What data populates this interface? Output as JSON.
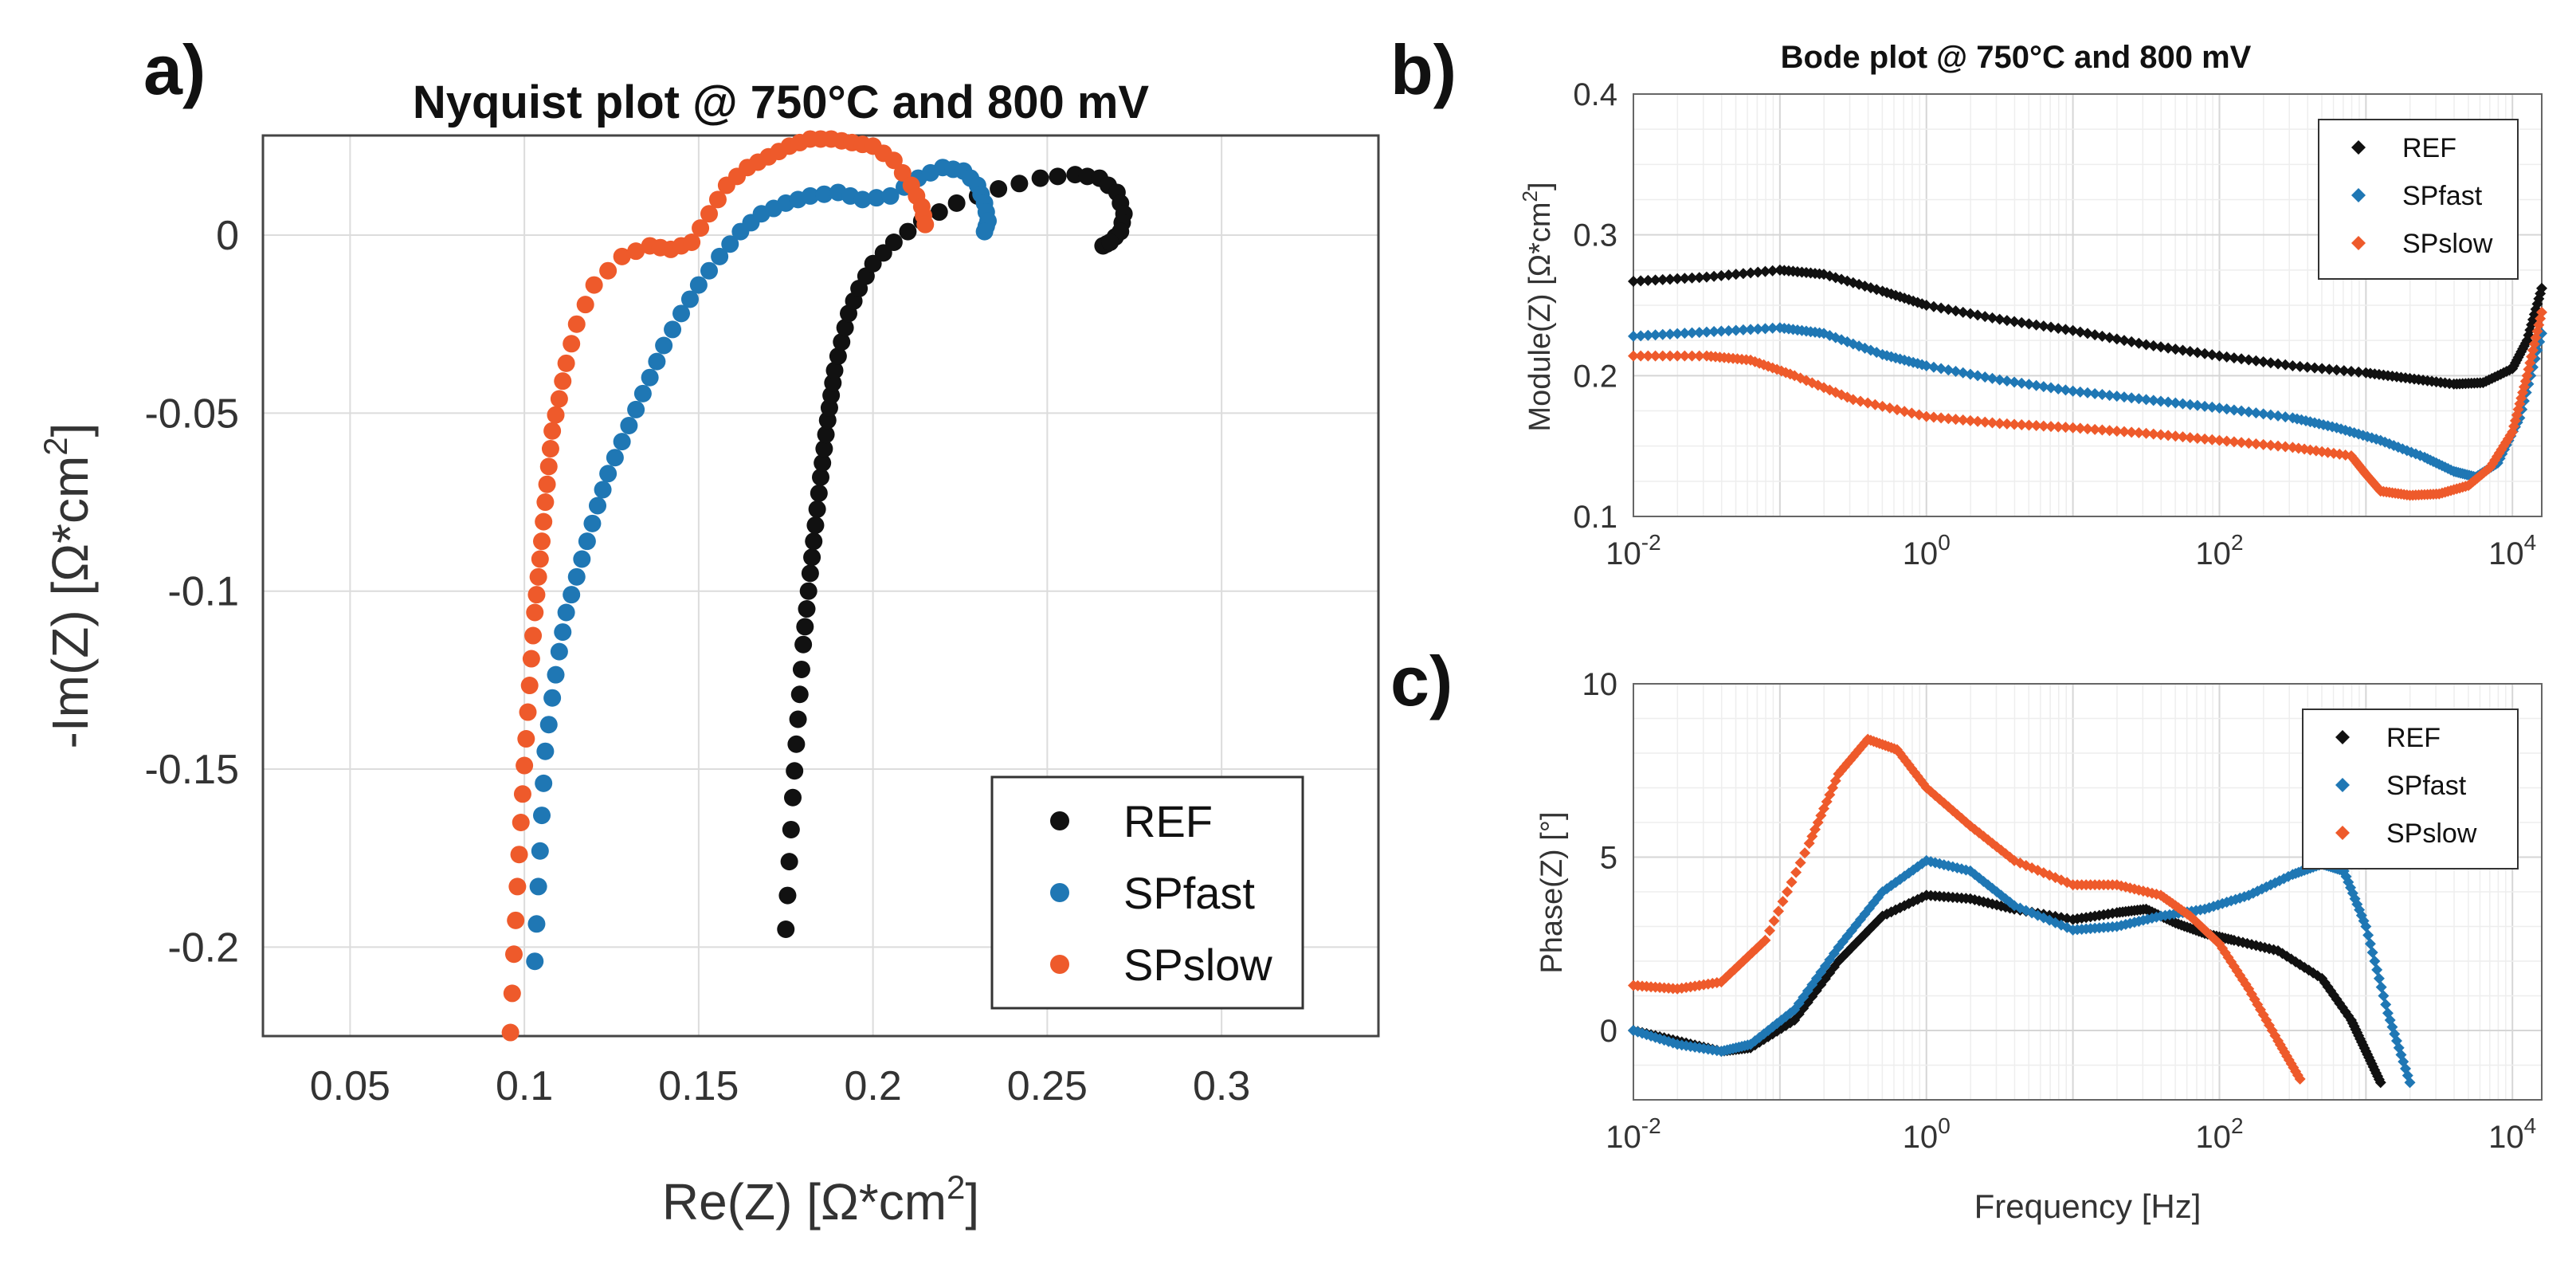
{
  "chart_data": [
    {
      "panel_label": "a)",
      "type": "scatter",
      "title": "Nyquist plot @ 750°C and 800 mV",
      "xlabel": "Re(Z) [Ω*cm",
      "xlabel_sup": "2",
      "xlabel_suffix": "]",
      "ylabel": "-Im(Z) [Ω*cm",
      "ylabel_sup": "2",
      "ylabel_suffix": "]",
      "xlim": [
        0.025,
        0.345
      ],
      "ylim": [
        -0.225,
        0.028
      ],
      "xticks": [
        "0.05",
        "0.1",
        "0.15",
        "0.2",
        "0.25",
        "0.3"
      ],
      "yticks": [
        "0",
        "-0.05",
        "-0.1",
        "-0.15",
        "-0.2"
      ],
      "grid": true,
      "legend": {
        "position": "bottom-right",
        "entries": [
          "REF",
          "SPfast",
          "SPslow"
        ]
      },
      "series": [
        {
          "name": "REF",
          "color": "#111111",
          "x": [
            0.175,
            0.176,
            0.177,
            0.178,
            0.179,
            0.18,
            0.181,
            0.182,
            0.183,
            0.184,
            0.185,
            0.186,
            0.187,
            0.188,
            0.189,
            0.191,
            0.193,
            0.196,
            0.2,
            0.206,
            0.214,
            0.224,
            0.236,
            0.248,
            0.258,
            0.265,
            0.27,
            0.272,
            0.271,
            0.268,
            0.266,
            0.268
          ],
          "y": [
            -0.195,
            -0.176,
            -0.158,
            -0.143,
            -0.129,
            -0.115,
            -0.105,
            -0.095,
            -0.086,
            -0.077,
            -0.068,
            -0.06,
            -0.052,
            -0.045,
            -0.038,
            -0.03,
            -0.022,
            -0.015,
            -0.008,
            -0.002,
            0.004,
            0.009,
            0.013,
            0.016,
            0.017,
            0.016,
            0.012,
            0.006,
            0.001,
            -0.002,
            -0.003,
            -0.002
          ]
        },
        {
          "name": "SPfast",
          "color": "#1f77b4",
          "x": [
            0.103,
            0.104,
            0.105,
            0.106,
            0.108,
            0.11,
            0.112,
            0.115,
            0.118,
            0.121,
            0.124,
            0.128,
            0.132,
            0.136,
            0.14,
            0.145,
            0.15,
            0.156,
            0.162,
            0.168,
            0.175,
            0.182,
            0.19,
            0.197,
            0.205,
            0.213,
            0.22,
            0.226,
            0.23,
            0.232,
            0.233,
            0.232
          ],
          "y": [
            -0.204,
            -0.183,
            -0.163,
            -0.145,
            -0.13,
            -0.117,
            -0.106,
            -0.096,
            -0.086,
            -0.076,
            -0.067,
            -0.058,
            -0.049,
            -0.04,
            -0.031,
            -0.022,
            -0.014,
            -0.006,
            0.001,
            0.006,
            0.009,
            0.011,
            0.012,
            0.01,
            0.011,
            0.016,
            0.019,
            0.018,
            0.014,
            0.009,
            0.004,
            0.001
          ]
        },
        {
          "name": "SPslow",
          "color": "#ee5a2b",
          "x": [
            0.096,
            0.097,
            0.098,
            0.099,
            0.1,
            0.101,
            0.102,
            0.103,
            0.104,
            0.105,
            0.106,
            0.107,
            0.108,
            0.11,
            0.112,
            0.115,
            0.12,
            0.128,
            0.136,
            0.142,
            0.148,
            0.153,
            0.158,
            0.164,
            0.17,
            0.176,
            0.182,
            0.188,
            0.194,
            0.2,
            0.206,
            0.211,
            0.214,
            0.215
          ],
          "y": [
            -0.224,
            -0.202,
            -0.183,
            -0.165,
            -0.149,
            -0.134,
            -0.119,
            -0.106,
            -0.096,
            -0.086,
            -0.075,
            -0.065,
            -0.055,
            -0.046,
            -0.036,
            -0.025,
            -0.014,
            -0.006,
            -0.003,
            -0.004,
            -0.002,
            0.006,
            0.014,
            0.019,
            0.022,
            0.025,
            0.027,
            0.027,
            0.026,
            0.025,
            0.021,
            0.014,
            0.008,
            0.003
          ]
        }
      ]
    },
    {
      "panel_label": "b)",
      "type": "line",
      "title": "Bode plot @ 750°C and 800 mV",
      "xlabel": "",
      "ylabel": "Module(Z) [Ω*cm",
      "ylabel_sup": "2",
      "ylabel_suffix": "]",
      "xscale": "log",
      "xlim_log10": [
        -2,
        4.2
      ],
      "ylim": [
        0.1,
        0.4
      ],
      "xticks": [
        {
          "base": "10",
          "exp": "-2"
        },
        {
          "base": "10",
          "exp": "0"
        },
        {
          "base": "10",
          "exp": "2"
        },
        {
          "base": "10",
          "exp": "4"
        }
      ],
      "yticks": [
        "0.1",
        "0.2",
        "0.3",
        "0.4"
      ],
      "grid": true,
      "legend": {
        "position": "top-right",
        "entries": [
          "REF",
          "SPfast",
          "SPslow"
        ]
      },
      "series": [
        {
          "name": "REF",
          "color": "#111111",
          "log10_x": [
            -2,
            -1.5,
            -1,
            -0.7,
            -0.3,
            0,
            0.5,
            1,
            1.5,
            2,
            2.5,
            3,
            3.3,
            3.6,
            3.8,
            4,
            4.1,
            4.2
          ],
          "y": [
            0.267,
            0.27,
            0.275,
            0.272,
            0.26,
            0.25,
            0.24,
            0.232,
            0.222,
            0.214,
            0.207,
            0.202,
            0.198,
            0.194,
            0.195,
            0.205,
            0.225,
            0.262
          ]
        },
        {
          "name": "SPfast",
          "color": "#1f77b4",
          "log10_x": [
            -2,
            -1.5,
            -1,
            -0.7,
            -0.3,
            0,
            0.5,
            1,
            1.5,
            2,
            2.5,
            2.8,
            3.1,
            3.4,
            3.6,
            3.75,
            3.9,
            4.05,
            4.2
          ],
          "y": [
            0.228,
            0.231,
            0.234,
            0.23,
            0.215,
            0.207,
            0.197,
            0.189,
            0.183,
            0.177,
            0.17,
            0.163,
            0.154,
            0.142,
            0.132,
            0.128,
            0.138,
            0.17,
            0.23
          ]
        },
        {
          "name": "SPslow",
          "color": "#ee5a2b",
          "log10_x": [
            -2,
            -1.5,
            -1.2,
            -0.9,
            -0.5,
            0,
            0.5,
            1,
            1.5,
            2,
            2.5,
            2.9,
            3.0,
            3.1,
            3.3,
            3.5,
            3.7,
            3.85,
            4.0,
            4.1,
            4.2
          ],
          "y": [
            0.214,
            0.214,
            0.211,
            0.2,
            0.183,
            0.171,
            0.166,
            0.163,
            0.159,
            0.154,
            0.149,
            0.143,
            0.13,
            0.118,
            0.115,
            0.116,
            0.122,
            0.135,
            0.16,
            0.2,
            0.245
          ]
        }
      ]
    },
    {
      "panel_label": "c)",
      "type": "line",
      "title": "",
      "xlabel": "Frequency [Hz]",
      "ylabel": "Phase(Z) [°]",
      "xscale": "log",
      "xlim_log10": [
        -2,
        4.2
      ],
      "ylim": [
        -2,
        10
      ],
      "xticks": [
        {
          "base": "10",
          "exp": "-2"
        },
        {
          "base": "10",
          "exp": "0"
        },
        {
          "base": "10",
          "exp": "2"
        },
        {
          "base": "10",
          "exp": "4"
        }
      ],
      "yticks": [
        "0",
        "5",
        "10"
      ],
      "grid": true,
      "legend": {
        "position": "top-right",
        "entries": [
          "REF",
          "SPfast",
          "SPslow"
        ]
      },
      "series": [
        {
          "name": "REF",
          "color": "#111111",
          "log10_x": [
            -2,
            -1.7,
            -1.4,
            -1.2,
            -0.9,
            -0.6,
            -0.3,
            0,
            0.3,
            0.6,
            1,
            1.3,
            1.5,
            1.7,
            1.9,
            2.1,
            2.4,
            2.7,
            2.9,
            3.0,
            3.1
          ],
          "y": [
            0,
            -0.3,
            -0.6,
            -0.5,
            0.3,
            2.0,
            3.3,
            3.9,
            3.8,
            3.5,
            3.2,
            3.4,
            3.5,
            3.1,
            2.8,
            2.6,
            2.3,
            1.5,
            0.3,
            -0.6,
            -1.5
          ]
        },
        {
          "name": "SPfast",
          "color": "#1f77b4",
          "log10_x": [
            -2,
            -1.7,
            -1.4,
            -1.2,
            -0.9,
            -0.6,
            -0.3,
            0,
            0.3,
            0.6,
            1,
            1.3,
            1.6,
            1.9,
            2.2,
            2.5,
            2.7,
            2.85,
            3.0,
            3.15,
            3.3
          ],
          "y": [
            0,
            -0.4,
            -0.6,
            -0.4,
            0.6,
            2.4,
            4.0,
            4.9,
            4.6,
            3.6,
            2.9,
            3.0,
            3.3,
            3.5,
            3.9,
            4.5,
            4.8,
            4.6,
            3.0,
            0.5,
            -1.5
          ]
        },
        {
          "name": "SPslow",
          "color": "#ee5a2b",
          "log10_x": [
            -2,
            -1.7,
            -1.4,
            -1.1,
            -0.8,
            -0.6,
            -0.4,
            -0.2,
            0,
            0.3,
            0.6,
            1,
            1.3,
            1.6,
            1.8,
            2.0,
            2.2,
            2.4,
            2.55
          ],
          "y": [
            1.3,
            1.2,
            1.4,
            2.6,
            5.4,
            7.4,
            8.4,
            8.1,
            7.0,
            5.9,
            4.9,
            4.2,
            4.2,
            3.9,
            3.3,
            2.5,
            1.2,
            -0.3,
            -1.4
          ]
        }
      ]
    }
  ]
}
